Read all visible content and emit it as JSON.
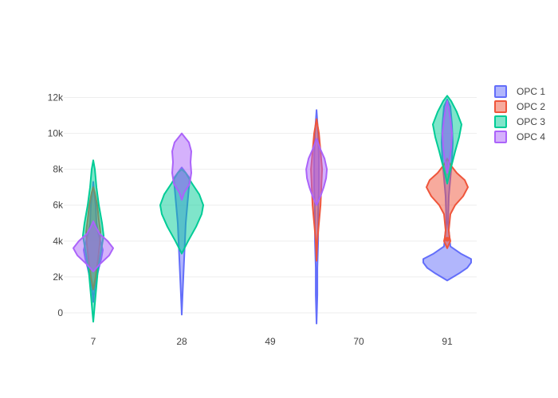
{
  "chart_data": {
    "type": "violin",
    "x_ticks": [
      7,
      28,
      49,
      70,
      91
    ],
    "y_ticks": [
      0,
      2000,
      4000,
      6000,
      8000,
      10000,
      12000
    ],
    "y_tick_labels": [
      "0",
      "2k",
      "4k",
      "6k",
      "8k",
      "10k",
      "12k"
    ],
    "xlim": [
      0,
      98
    ],
    "ylim": [
      -1200,
      13000
    ],
    "grid": true,
    "legend_position": "top-right",
    "series": [
      {
        "name": "OPC 1",
        "color": "#636efa",
        "violins": [
          {
            "x": 7,
            "profile": [
              [
                600,
                0
              ],
              [
                1500,
                2
              ],
              [
                2500,
                7
              ],
              [
                3000,
                10
              ],
              [
                3500,
                12
              ],
              [
                4000,
                9
              ],
              [
                4500,
                6
              ],
              [
                5000,
                4
              ],
              [
                6000,
                3
              ],
              [
                6800,
                1
              ],
              [
                7300,
                0
              ]
            ]
          },
          {
            "x": 28,
            "profile": [
              [
                -100,
                0
              ],
              [
                1000,
                1
              ],
              [
                2000,
                2
              ],
              [
                3000,
                3
              ],
              [
                4000,
                4
              ],
              [
                5000,
                5
              ],
              [
                6000,
                7
              ],
              [
                7000,
                9
              ],
              [
                7500,
                10
              ],
              [
                8100,
                0
              ]
            ]
          },
          {
            "x": 60,
            "profile": [
              [
                -600,
                0
              ],
              [
                1000,
                1
              ],
              [
                2500,
                1
              ],
              [
                4000,
                2
              ],
              [
                5500,
                2
              ],
              [
                7000,
                3
              ],
              [
                8500,
                3
              ],
              [
                10000,
                2
              ],
              [
                11300,
                0
              ]
            ]
          },
          {
            "x": 91,
            "profile": [
              [
                1800,
                0
              ],
              [
                2200,
                15
              ],
              [
                2500,
                25
              ],
              [
                2800,
                30
              ],
              [
                3000,
                30
              ],
              [
                3300,
                17
              ],
              [
                3700,
                4
              ],
              [
                5000,
                1
              ],
              [
                6500,
                2
              ],
              [
                7500,
                4
              ],
              [
                8500,
                6
              ],
              [
                9500,
                7
              ],
              [
                10500,
                6
              ],
              [
                11500,
                4
              ],
              [
                11900,
                0
              ]
            ]
          }
        ]
      },
      {
        "name": "OPC 2",
        "color": "#EF553B",
        "violins": [
          {
            "x": 7,
            "profile": [
              [
                1300,
                0
              ],
              [
                2000,
                3
              ],
              [
                3000,
                6
              ],
              [
                3800,
                8
              ],
              [
                4500,
                9
              ],
              [
                5200,
                7
              ],
              [
                6000,
                5
              ],
              [
                6700,
                2
              ],
              [
                7000,
                0
              ]
            ]
          },
          {
            "x": 60,
            "profile": [
              [
                2900,
                0
              ],
              [
                4000,
                1
              ],
              [
                5000,
                3
              ],
              [
                6000,
                5
              ],
              [
                7000,
                6
              ],
              [
                8000,
                7
              ],
              [
                9000,
                5
              ],
              [
                10000,
                3
              ],
              [
                10800,
                0
              ]
            ]
          },
          {
            "x": 91,
            "profile": [
              [
                3600,
                0
              ],
              [
                4000,
                4
              ],
              [
                4200,
                3
              ],
              [
                4600,
                2
              ],
              [
                5500,
                4
              ],
              [
                6000,
                10
              ],
              [
                6500,
                20
              ],
              [
                7000,
                26
              ],
              [
                7400,
                22
              ],
              [
                7800,
                12
              ],
              [
                8200,
                5
              ],
              [
                8600,
                0
              ]
            ]
          }
        ]
      },
      {
        "name": "OPC 3",
        "color": "#00cc96",
        "violins": [
          {
            "x": 7,
            "profile": [
              [
                -500,
                0
              ],
              [
                500,
                2
              ],
              [
                1500,
                4
              ],
              [
                2500,
                6
              ],
              [
                3500,
                10
              ],
              [
                4300,
                13
              ],
              [
                5000,
                11
              ],
              [
                6000,
                7
              ],
              [
                7000,
                4
              ],
              [
                8000,
                2
              ],
              [
                8500,
                0
              ]
            ]
          },
          {
            "x": 28,
            "profile": [
              [
                3300,
                0
              ],
              [
                4000,
                8
              ],
              [
                4800,
                18
              ],
              [
                5500,
                25
              ],
              [
                6000,
                27
              ],
              [
                6600,
                22
              ],
              [
                7200,
                13
              ],
              [
                7800,
                5
              ],
              [
                8000,
                0
              ]
            ]
          },
          {
            "x": 91,
            "profile": [
              [
                7200,
                0
              ],
              [
                7800,
                3
              ],
              [
                8300,
                6
              ],
              [
                9000,
                10
              ],
              [
                9800,
                15
              ],
              [
                10500,
                18
              ],
              [
                11200,
                12
              ],
              [
                11800,
                5
              ],
              [
                12100,
                0
              ]
            ]
          }
        ]
      },
      {
        "name": "OPC 4",
        "color": "#ab63fa",
        "violins": [
          {
            "x": 7,
            "profile": [
              [
                2300,
                0
              ],
              [
                2700,
                8
              ],
              [
                3200,
                20
              ],
              [
                3600,
                25
              ],
              [
                4000,
                18
              ],
              [
                4400,
                8
              ],
              [
                4800,
                3
              ],
              [
                5100,
                0
              ]
            ]
          },
          {
            "x": 28,
            "profile": [
              [
                6300,
                0
              ],
              [
                6700,
                3
              ],
              [
                7200,
                10
              ],
              [
                7800,
                12
              ],
              [
                8400,
                11
              ],
              [
                9000,
                12
              ],
              [
                9500,
                9
              ],
              [
                10000,
                0
              ]
            ]
          },
          {
            "x": 60,
            "profile": [
              [
                6000,
                0
              ],
              [
                6500,
                5
              ],
              [
                7000,
                9
              ],
              [
                7500,
                12
              ],
              [
                8000,
                13
              ],
              [
                8600,
                10
              ],
              [
                9100,
                5
              ],
              [
                9700,
                0
              ]
            ]
          },
          {
            "x": 91,
            "profile": [
              [
                7800,
                0
              ],
              [
                8500,
                3
              ],
              [
                9200,
                5
              ],
              [
                10000,
                6
              ],
              [
                10800,
                4
              ],
              [
                11400,
                2
              ],
              [
                11800,
                0
              ]
            ]
          }
        ]
      }
    ],
    "outliers": [
      {
        "series": "OPC 2",
        "x": 91,
        "y": 4100
      }
    ]
  }
}
